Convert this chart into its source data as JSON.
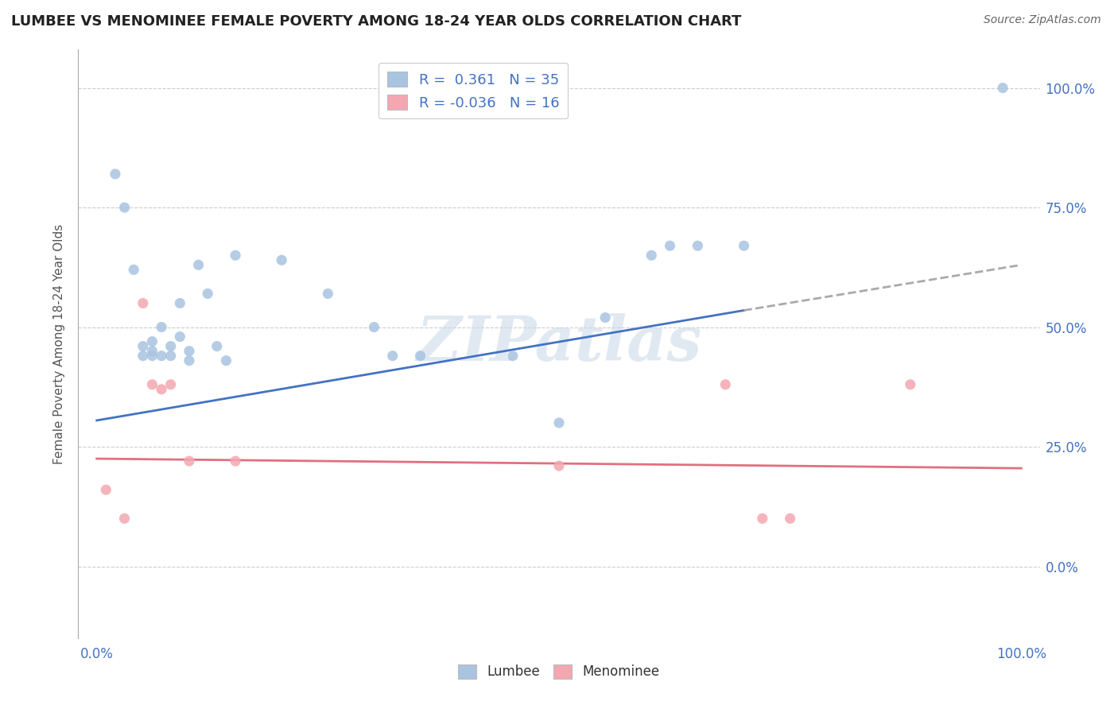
{
  "title": "LUMBEE VS MENOMINEE FEMALE POVERTY AMONG 18-24 YEAR OLDS CORRELATION CHART",
  "source": "Source: ZipAtlas.com",
  "ylabel": "Female Poverty Among 18-24 Year Olds",
  "xlim": [
    -0.02,
    1.02
  ],
  "ylim": [
    -0.15,
    1.08
  ],
  "xtick_positions": [
    0.0,
    1.0
  ],
  "xtick_labels": [
    "0.0%",
    "100.0%"
  ],
  "ytick_values": [
    0.0,
    0.25,
    0.5,
    0.75,
    1.0
  ],
  "ytick_labels": [
    "0.0%",
    "25.0%",
    "50.0%",
    "75.0%",
    "100.0%"
  ],
  "lumbee_color": "#a8c4e0",
  "menominee_color": "#f4a7b0",
  "lumbee_R": 0.361,
  "lumbee_N": 35,
  "menominee_R": -0.036,
  "menominee_N": 16,
  "watermark": "ZIPatlas",
  "lumbee_x": [
    0.02,
    0.03,
    0.04,
    0.05,
    0.05,
    0.06,
    0.06,
    0.06,
    0.07,
    0.07,
    0.08,
    0.08,
    0.09,
    0.09,
    0.1,
    0.1,
    0.11,
    0.12,
    0.13,
    0.14,
    0.15,
    0.2,
    0.25,
    0.3,
    0.32,
    0.35,
    0.45,
    0.5,
    0.55,
    0.6,
    0.62,
    0.65,
    0.7,
    0.98
  ],
  "lumbee_y": [
    0.82,
    0.75,
    0.62,
    0.44,
    0.46,
    0.44,
    0.45,
    0.47,
    0.44,
    0.5,
    0.44,
    0.46,
    0.48,
    0.55,
    0.43,
    0.45,
    0.63,
    0.57,
    0.46,
    0.43,
    0.65,
    0.64,
    0.57,
    0.5,
    0.44,
    0.44,
    0.44,
    0.3,
    0.52,
    0.65,
    0.67,
    0.67,
    0.67,
    1.0
  ],
  "menominee_x": [
    0.01,
    0.03,
    0.05,
    0.06,
    0.07,
    0.08,
    0.1,
    0.15,
    0.5,
    0.68,
    0.72,
    0.75,
    0.88
  ],
  "menominee_y": [
    0.16,
    0.1,
    0.55,
    0.38,
    0.37,
    0.38,
    0.22,
    0.22,
    0.21,
    0.38,
    0.1,
    0.1,
    0.38
  ],
  "line_lumbee_x0": 0.0,
  "line_lumbee_y0": 0.305,
  "line_lumbee_x1": 0.7,
  "line_lumbee_y1": 0.535,
  "line_lumbee_dash_x1": 1.0,
  "line_lumbee_dash_y1": 0.63,
  "line_menominee_x0": 0.0,
  "line_menominee_y0": 0.225,
  "line_menominee_x1": 1.0,
  "line_menominee_y1": 0.205,
  "background_color": "#ffffff",
  "grid_color": "#cccccc",
  "line_blue_color": "#4472C4",
  "line_pink_color": "#e07080"
}
